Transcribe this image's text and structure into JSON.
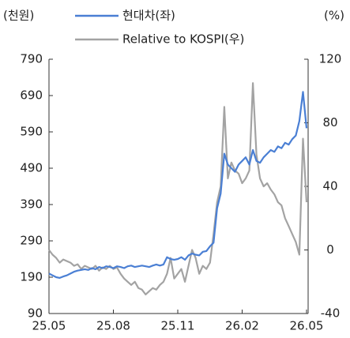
{
  "chart_data": {
    "type": "line",
    "y_label": "(천원)",
    "y2_label": "(%)",
    "categories": [
      "25.05",
      null,
      null,
      null,
      null,
      null,
      null,
      null,
      null,
      null,
      null,
      null,
      null,
      null,
      null,
      null,
      null,
      null,
      "25.08",
      null,
      null,
      null,
      null,
      null,
      null,
      null,
      null,
      null,
      null,
      null,
      null,
      null,
      null,
      null,
      null,
      null,
      "25.11",
      null,
      null,
      null,
      null,
      null,
      null,
      null,
      null,
      null,
      null,
      null,
      null,
      null,
      null,
      null,
      null,
      null,
      "26.02",
      null,
      null,
      null,
      null,
      null,
      null,
      null,
      null,
      null,
      null,
      null,
      null,
      null,
      null,
      null,
      null,
      null,
      "26.05"
    ],
    "series": [
      {
        "name": "현대차(좌)",
        "color": "#4a7fd4",
        "values": [
          200,
          195,
          190,
          188,
          192,
          195,
          200,
          205,
          208,
          210,
          212,
          210,
          215,
          212,
          218,
          215,
          220,
          218,
          215,
          220,
          218,
          215,
          220,
          222,
          218,
          220,
          222,
          220,
          218,
          222,
          225,
          222,
          225,
          245,
          240,
          238,
          240,
          245,
          238,
          250,
          255,
          252,
          250,
          260,
          262,
          275,
          285,
          380,
          420,
          530,
          500,
          490,
          480,
          500,
          510,
          520,
          500,
          540,
          510,
          505,
          520,
          530,
          540,
          535,
          550,
          545,
          560,
          555,
          570,
          580,
          620,
          700,
          600
        ]
      },
      {
        "name": "Relative to KOSPI(우)",
        "color": "#a3a3a3",
        "axis": "y2",
        "values": [
          0,
          -3,
          -5,
          -8,
          -6,
          -7,
          -8,
          -10,
          -9,
          -12,
          -10,
          -11,
          -12,
          -10,
          -13,
          -11,
          -12,
          -10,
          -12,
          -11,
          -15,
          -18,
          -20,
          -22,
          -20,
          -24,
          -25,
          -28,
          -26,
          -24,
          -25,
          -22,
          -20,
          -15,
          -5,
          -18,
          -15,
          -12,
          -20,
          -10,
          0,
          -5,
          -15,
          -10,
          -12,
          -8,
          10,
          30,
          40,
          90,
          45,
          55,
          50,
          48,
          42,
          45,
          50,
          105,
          60,
          45,
          40,
          42,
          38,
          35,
          30,
          28,
          20,
          15,
          10,
          5,
          -3,
          70,
          30
        ]
      }
    ],
    "ylim": [
      90,
      790
    ],
    "yticks": [
      90,
      190,
      290,
      390,
      490,
      590,
      690,
      790
    ],
    "y2lim": [
      -40,
      120
    ],
    "y2ticks": [
      -40,
      0,
      40,
      80,
      120
    ],
    "legend": "top"
  }
}
